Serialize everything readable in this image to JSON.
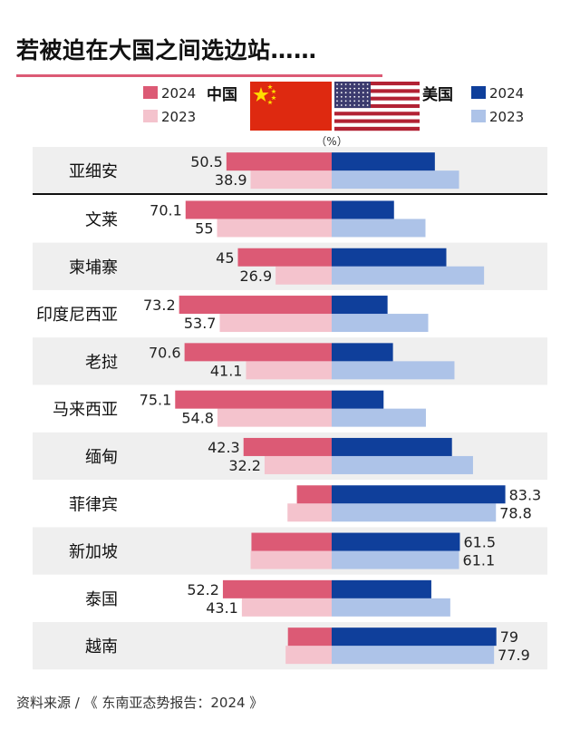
{
  "title": "若被迫在大国之间选边站……",
  "source": "资料来源 / 《 东南亚态势报告：2024 》",
  "colors": {
    "china_2024": "#dc5a75",
    "china_2023": "#f4c3cd",
    "us_2024": "#0f3f9b",
    "us_2023": "#adc3e8",
    "row_shade": "#efefef",
    "flag_red": "#de2910",
    "flag_yellow": "#ffde00",
    "flag_blue": "#3c3b6e",
    "flag_stripe_red": "#b22234"
  },
  "chart_data": {
    "type": "bar",
    "orientation": "horizontal-diverging",
    "unit_label": "（%）",
    "legend": {
      "china_name": "中国",
      "us_name": "美国",
      "year_2024": "2024",
      "year_2023": "2023"
    },
    "categories": [
      "亚细安",
      "文莱",
      "柬埔寨",
      "印度尼西亚",
      "老挝",
      "马来西亚",
      "缅甸",
      "菲律宾",
      "新加坡",
      "泰国",
      "越南"
    ],
    "series": [
      {
        "name": "中国 2024",
        "values": [
          50.5,
          70.1,
          45,
          73.2,
          70.6,
          75.1,
          42.3,
          16.7,
          38.5,
          52.2,
          21
        ]
      },
      {
        "name": "中国 2023",
        "values": [
          38.9,
          55,
          26.9,
          53.7,
          41.1,
          54.8,
          32.2,
          21.2,
          38.9,
          43.1,
          22.1
        ]
      },
      {
        "name": "美国 2024",
        "values": [
          49.5,
          29.9,
          55,
          26.8,
          29.4,
          24.9,
          57.7,
          83.3,
          61.5,
          47.8,
          79
        ]
      },
      {
        "name": "美国 2023",
        "values": [
          61.1,
          45,
          73.1,
          46.3,
          58.9,
          45.2,
          67.8,
          78.8,
          61.1,
          56.9,
          77.9
        ]
      }
    ],
    "value_labels": {
      "china_2024": [
        "50.5",
        "70.1",
        "45",
        "73.2",
        "70.6",
        "75.1",
        "42.3",
        "",
        "",
        "52.2",
        ""
      ],
      "china_2023": [
        "38.9",
        "55",
        "26.9",
        "53.7",
        "41.1",
        "54.8",
        "32.2",
        "",
        "",
        "43.1",
        ""
      ],
      "us_2024": [
        "",
        "",
        "",
        "",
        "",
        "",
        "",
        "83.3",
        "61.5",
        "",
        "79"
      ],
      "us_2023": [
        "",
        "",
        "",
        "",
        "",
        "",
        "",
        "78.8",
        "61.1",
        "",
        "77.9"
      ]
    },
    "xlim": [
      -100,
      100
    ]
  }
}
